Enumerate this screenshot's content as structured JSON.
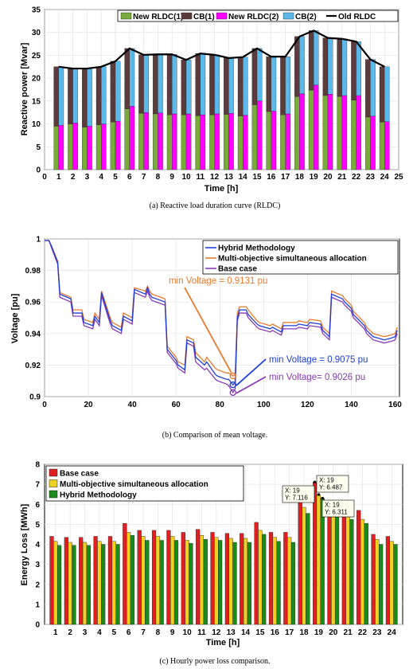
{
  "chart_data": [
    {
      "type": "bar",
      "xlabel": "Time [h]",
      "ylabel": "Reactive power [Mvar]",
      "caption": "(a)  Reactive load duration curve (RLDC)",
      "xlim": [
        0,
        25
      ],
      "ylim": [
        0,
        35
      ],
      "xticks": [
        "0",
        "1",
        "2",
        "3",
        "4",
        "5",
        "6",
        "7",
        "8",
        "9",
        "10",
        "11",
        "12",
        "13",
        "14",
        "15",
        "16",
        "17",
        "18",
        "19",
        "20",
        "21",
        "22",
        "23",
        "24",
        "25"
      ],
      "yticks": [
        "0",
        "5",
        "10",
        "15",
        "20",
        "25",
        "30",
        "35"
      ],
      "categories": [
        1,
        2,
        3,
        4,
        5,
        6,
        7,
        8,
        9,
        10,
        11,
        12,
        13,
        14,
        15,
        16,
        17,
        18,
        19,
        20,
        21,
        22,
        23,
        24
      ],
      "legend_position": "top",
      "legend": [
        "New RLDC(1)",
        "CB(1)",
        "New RLDC(2)",
        "CB(2)",
        "Old RLDC"
      ],
      "colors": {
        "rldc1": "#7aab3a",
        "cb1": "#5b3b3b",
        "rldc2": "#ff00ff",
        "cb2": "#5bb8e8",
        "old": "#000000"
      },
      "series": [
        {
          "name": "New RLDC(1)",
          "values": [
            9.5,
            10,
            9.3,
            9.8,
            10.4,
            13.3,
            12.3,
            12.2,
            12,
            12,
            11.8,
            12,
            12.1,
            11.7,
            14.2,
            12.7,
            12,
            16,
            17.4,
            16.2,
            16,
            15.2,
            11.5,
            10.4
          ]
        },
        {
          "name": "CB(1)",
          "values": [
            13.0,
            12.1,
            12.8,
            12.7,
            13.3,
            13.2,
            12.8,
            13.0,
            13.2,
            12.0,
            13.6,
            13.1,
            12.3,
            12.9,
            12.3,
            12.0,
            12.7,
            13.1,
            13.0,
            12.6,
            12.6,
            12.8,
            12.6,
            12.1
          ]
        },
        {
          "name": "New RLDC(2)",
          "values": [
            9.7,
            10.2,
            9.5,
            10,
            10.6,
            13.9,
            12.5,
            12.4,
            12.2,
            12.2,
            12,
            12.2,
            12.3,
            11.9,
            15,
            12.8,
            12.2,
            16.6,
            18.5,
            16.5,
            16.2,
            16.2,
            11.7,
            10.5
          ]
        },
        {
          "name": "CB(2)",
          "values": [
            12.8,
            11.9,
            12.6,
            12.5,
            13.1,
            12.6,
            12.6,
            12.8,
            13.0,
            11.8,
            13.4,
            12.9,
            12.1,
            12.7,
            11.5,
            11.9,
            12.5,
            12.5,
            11.9,
            12.3,
            12.4,
            11.8,
            12.4,
            12.0
          ]
        },
        {
          "name": "Old RLDC",
          "values": [
            22.5,
            22.1,
            22.1,
            22.5,
            23.7,
            26.5,
            25.1,
            25.2,
            25.2,
            24,
            25.4,
            25.1,
            24.4,
            24.6,
            26.5,
            24.7,
            24.7,
            29.1,
            30.4,
            28.8,
            28.6,
            28,
            24.1,
            22.5
          ]
        }
      ]
    },
    {
      "type": "line",
      "xlabel": "",
      "ylabel": "Voltage [pu]",
      "caption": "(b)  Comparison of mean voltage.",
      "xlim": [
        0,
        162
      ],
      "ylim": [
        0.9,
        1.0
      ],
      "xticks": [
        "0",
        "20",
        "40",
        "60",
        "80",
        "100",
        "120",
        "140",
        "160"
      ],
      "yticks": [
        "0.9",
        "0.92",
        "0.94",
        "0.96",
        "0.98",
        "1"
      ],
      "legend_position": "top-right",
      "legend": [
        "Hybrid Methodology",
        "Multi-objective simultaneous allocation",
        "Base case"
      ],
      "colors": {
        "hybrid": "#1f3fd6",
        "multi": "#e87a2f",
        "base": "#8a3ab8"
      },
      "series": [
        {
          "name": "Hybrid Methodology",
          "x": [
            0,
            2,
            3,
            6,
            7,
            12,
            13,
            17,
            18,
            22,
            23,
            25,
            26,
            30,
            31,
            35,
            36,
            40,
            41,
            46,
            47,
            48,
            49,
            55,
            56,
            60,
            61,
            64,
            65,
            68,
            69,
            73,
            74,
            78,
            79,
            83,
            84,
            86,
            87,
            88,
            89,
            92,
            93,
            97,
            98,
            103,
            104,
            108,
            109,
            115,
            116,
            120,
            121,
            126,
            127,
            130,
            131,
            136,
            137,
            140,
            141,
            146,
            147,
            150,
            155,
            158,
            160,
            161
          ],
          "values": [
            0.999,
            0.999,
            0.996,
            0.985,
            0.965,
            0.962,
            0.953,
            0.953,
            0.947,
            0.945,
            0.951,
            0.947,
            0.966,
            0.948,
            0.945,
            0.942,
            0.951,
            0.948,
            0.968,
            0.965,
            0.969,
            0.965,
            0.963,
            0.96,
            0.93,
            0.923,
            0.92,
            0.917,
            0.936,
            0.934,
            0.925,
            0.92,
            0.922,
            0.914,
            0.913,
            0.911,
            0.911,
            0.9075,
            0.909,
            0.95,
            0.955,
            0.955,
            0.952,
            0.946,
            0.945,
            0.943,
            0.944,
            0.941,
            0.945,
            0.945,
            0.946,
            0.945,
            0.947,
            0.946,
            0.942,
            0.938,
            0.965,
            0.962,
            0.96,
            0.956,
            0.952,
            0.945,
            0.942,
            0.938,
            0.936,
            0.937,
            0.938,
            0.942
          ]
        },
        {
          "name": "Multi-objective simultaneous allocation",
          "x": [
            0,
            2,
            3,
            6,
            7,
            12,
            13,
            17,
            18,
            22,
            23,
            25,
            26,
            30,
            31,
            35,
            36,
            40,
            41,
            46,
            47,
            48,
            49,
            55,
            56,
            60,
            61,
            64,
            65,
            68,
            69,
            73,
            74,
            78,
            79,
            83,
            84,
            86,
            87,
            88,
            89,
            92,
            93,
            97,
            98,
            103,
            104,
            108,
            109,
            115,
            116,
            120,
            121,
            126,
            127,
            130,
            131,
            136,
            137,
            140,
            141,
            146,
            147,
            150,
            155,
            158,
            160,
            161
          ],
          "values": [
            0.999,
            0.999,
            0.996,
            0.986,
            0.966,
            0.963,
            0.955,
            0.955,
            0.949,
            0.947,
            0.953,
            0.949,
            0.967,
            0.95,
            0.947,
            0.944,
            0.953,
            0.95,
            0.969,
            0.967,
            0.97,
            0.967,
            0.965,
            0.962,
            0.932,
            0.925,
            0.922,
            0.92,
            0.938,
            0.936,
            0.928,
            0.922,
            0.925,
            0.918,
            0.917,
            0.915,
            0.915,
            0.9131,
            0.914,
            0.953,
            0.957,
            0.957,
            0.955,
            0.948,
            0.947,
            0.945,
            0.946,
            0.943,
            0.947,
            0.947,
            0.948,
            0.947,
            0.949,
            0.948,
            0.944,
            0.94,
            0.967,
            0.964,
            0.962,
            0.958,
            0.954,
            0.947,
            0.944,
            0.94,
            0.938,
            0.939,
            0.94,
            0.944
          ]
        },
        {
          "name": "Base case",
          "x": [
            0,
            2,
            3,
            6,
            7,
            12,
            13,
            17,
            18,
            22,
            23,
            25,
            26,
            30,
            31,
            35,
            36,
            40,
            41,
            46,
            47,
            48,
            49,
            55,
            56,
            60,
            61,
            64,
            65,
            68,
            69,
            73,
            74,
            78,
            79,
            83,
            84,
            86,
            87,
            88,
            89,
            92,
            93,
            97,
            98,
            103,
            104,
            108,
            109,
            115,
            116,
            120,
            121,
            126,
            127,
            130,
            131,
            136,
            137,
            140,
            141,
            146,
            147,
            150,
            155,
            158,
            160,
            161
          ],
          "values": [
            0.999,
            0.999,
            0.995,
            0.984,
            0.963,
            0.96,
            0.951,
            0.951,
            0.945,
            0.943,
            0.949,
            0.945,
            0.964,
            0.946,
            0.943,
            0.94,
            0.949,
            0.946,
            0.966,
            0.963,
            0.967,
            0.963,
            0.961,
            0.958,
            0.928,
            0.921,
            0.918,
            0.915,
            0.934,
            0.932,
            0.922,
            0.917,
            0.918,
            0.911,
            0.91,
            0.908,
            0.907,
            0.9026,
            0.905,
            0.948,
            0.953,
            0.953,
            0.95,
            0.944,
            0.943,
            0.941,
            0.942,
            0.939,
            0.943,
            0.943,
            0.944,
            0.943,
            0.945,
            0.944,
            0.94,
            0.936,
            0.963,
            0.96,
            0.958,
            0.954,
            0.95,
            0.943,
            0.94,
            0.936,
            0.934,
            0.935,
            0.936,
            0.94
          ]
        }
      ],
      "annotations": [
        {
          "text": "min Voltage = 0.9131 pu",
          "x": 86,
          "y": 0.9131,
          "color": "#e87a2f"
        },
        {
          "text": "min Voltage = 0.9075 pu",
          "x": 86,
          "y": 0.9075,
          "color": "#1f3fd6"
        },
        {
          "text": "min Voltage= 0.9026 pu",
          "x": 86,
          "y": 0.9026,
          "color": "#8a3ab8"
        }
      ]
    },
    {
      "type": "bar",
      "xlabel": "Time [h]",
      "ylabel": "Energy Loss [MWh]",
      "caption": "(c)  Hourly power loss comparison.",
      "ylim": [
        0,
        8
      ],
      "yticks": [
        "0",
        "1",
        "2",
        "3",
        "4",
        "5",
        "6",
        "7",
        "8"
      ],
      "categories": [
        "1",
        "2",
        "3",
        "4",
        "5",
        "6",
        "7",
        "8",
        "9",
        "10",
        "11",
        "12",
        "13",
        "14",
        "15",
        "16",
        "17",
        "18",
        "19",
        "20",
        "21",
        "22",
        "23",
        "24"
      ],
      "legend_position": "top-left",
      "legend": [
        "Base case",
        "Multi-objective simultaneous allocation",
        "Hybrid Methodology"
      ],
      "colors": {
        "base": "#e02020",
        "multi": "#f0d020",
        "hybrid": "#1a8a1a"
      },
      "series": [
        {
          "name": "Base case",
          "values": [
            4.4,
            4.35,
            4.35,
            4.4,
            4.4,
            5.05,
            4.7,
            4.7,
            4.7,
            4.6,
            4.75,
            4.6,
            4.55,
            4.55,
            5.1,
            4.6,
            4.6,
            6.3,
            7.116,
            6.0,
            5.8,
            5.7,
            4.5,
            4.4
          ]
        },
        {
          "name": "Multi-objective simultaneous allocation",
          "values": [
            4.15,
            4.1,
            4.1,
            4.15,
            4.15,
            4.6,
            4.4,
            4.4,
            4.4,
            4.2,
            4.45,
            4.35,
            4.3,
            4.3,
            4.7,
            4.35,
            4.35,
            5.85,
            6.487,
            5.6,
            5.4,
            5.25,
            4.25,
            4.15
          ]
        },
        {
          "name": "Hybrid Methodology",
          "values": [
            3.95,
            3.95,
            3.95,
            4.0,
            4.0,
            4.45,
            4.2,
            4.2,
            4.2,
            4.05,
            4.25,
            4.2,
            4.1,
            4.1,
            4.5,
            4.15,
            4.1,
            5.55,
            6.311,
            5.4,
            5.25,
            5.05,
            4.0,
            4.0
          ]
        }
      ],
      "tooltips": [
        {
          "lines": [
            "X: 19",
            "Y: 7.116"
          ],
          "series": 0,
          "index": 18
        },
        {
          "lines": [
            "X: 19",
            "Y: 6.487"
          ],
          "series": 1,
          "index": 18
        },
        {
          "lines": [
            "X: 19",
            "Y: 6.311"
          ],
          "series": 2,
          "index": 18
        }
      ]
    }
  ]
}
